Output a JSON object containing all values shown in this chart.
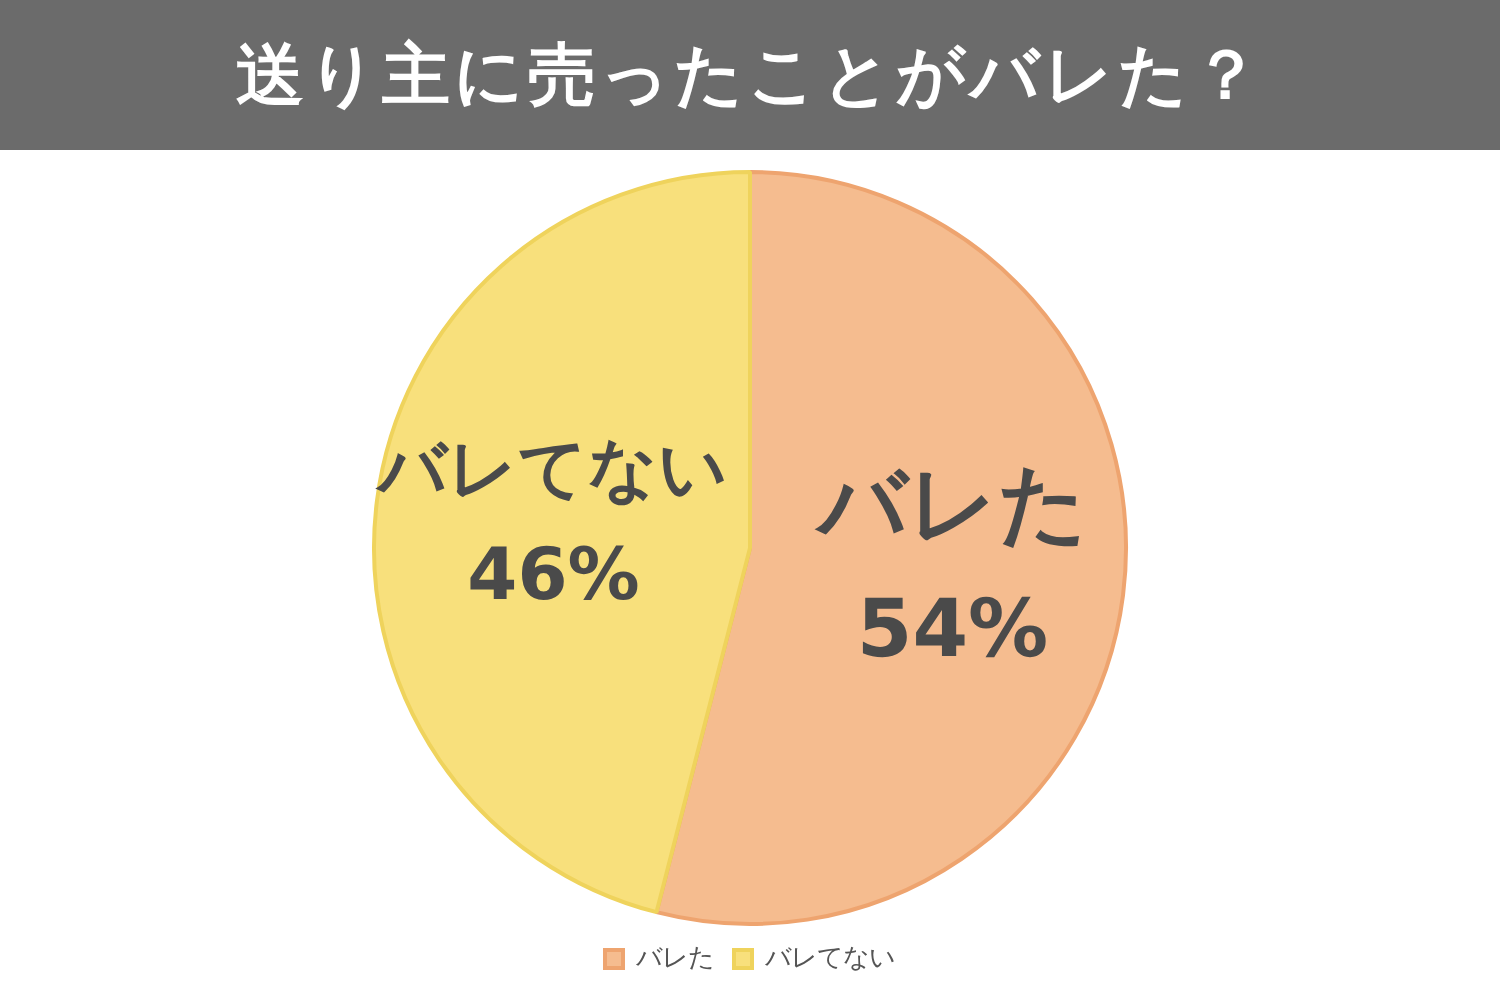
{
  "chart_data": {
    "type": "pie",
    "title": "送り主に売ったことがバレた？",
    "categories": [
      "バレた",
      "バレてない"
    ],
    "values": [
      54,
      46
    ],
    "value_labels": [
      "54%",
      "46%"
    ],
    "colors": [
      "#f5bc8f",
      "#f8e07c"
    ],
    "legend": "bottom"
  }
}
